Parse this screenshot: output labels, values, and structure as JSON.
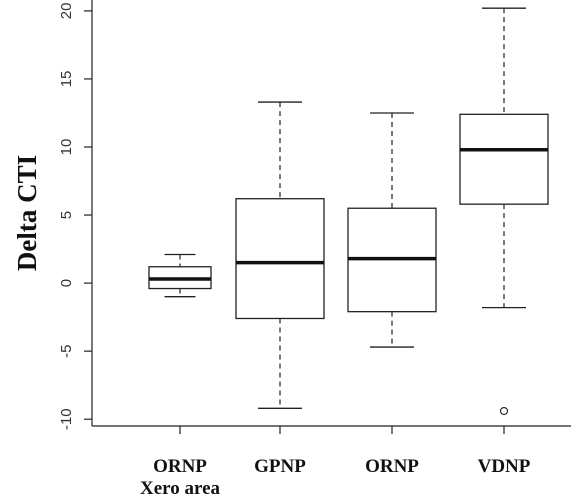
{
  "chart_data": {
    "type": "boxplot",
    "title": "",
    "xlabel": "",
    "ylabel": "Delta CTI",
    "ylim": [
      -10.5,
      20.8
    ],
    "yticks": [
      -10,
      -5,
      0,
      5,
      10,
      15,
      20
    ],
    "ytick_labels": [
      "-10",
      "-5",
      "0",
      "5",
      "10",
      "15",
      "20"
    ],
    "grid": false,
    "categories": [
      {
        "label_lines": [
          "ORNP",
          "Xero area"
        ]
      },
      {
        "label_lines": [
          "GPNP"
        ]
      },
      {
        "label_lines": [
          "ORNP"
        ]
      },
      {
        "label_lines": [
          "VDNP"
        ]
      }
    ],
    "boxes": [
      {
        "whisker_low": -1.0,
        "q1": -0.4,
        "median": 0.3,
        "q3": 1.2,
        "whisker_high": 2.1,
        "outliers": []
      },
      {
        "whisker_low": -9.2,
        "q1": -2.6,
        "median": 1.5,
        "q3": 6.2,
        "whisker_high": 13.3,
        "outliers": []
      },
      {
        "whisker_low": -4.7,
        "q1": -2.1,
        "median": 1.8,
        "q3": 5.5,
        "whisker_high": 12.5,
        "outliers": []
      },
      {
        "whisker_low": -1.8,
        "q1": 5.8,
        "median": 9.8,
        "q3": 12.4,
        "whisker_high": 20.2,
        "outliers": [
          -9.4
        ]
      }
    ]
  }
}
